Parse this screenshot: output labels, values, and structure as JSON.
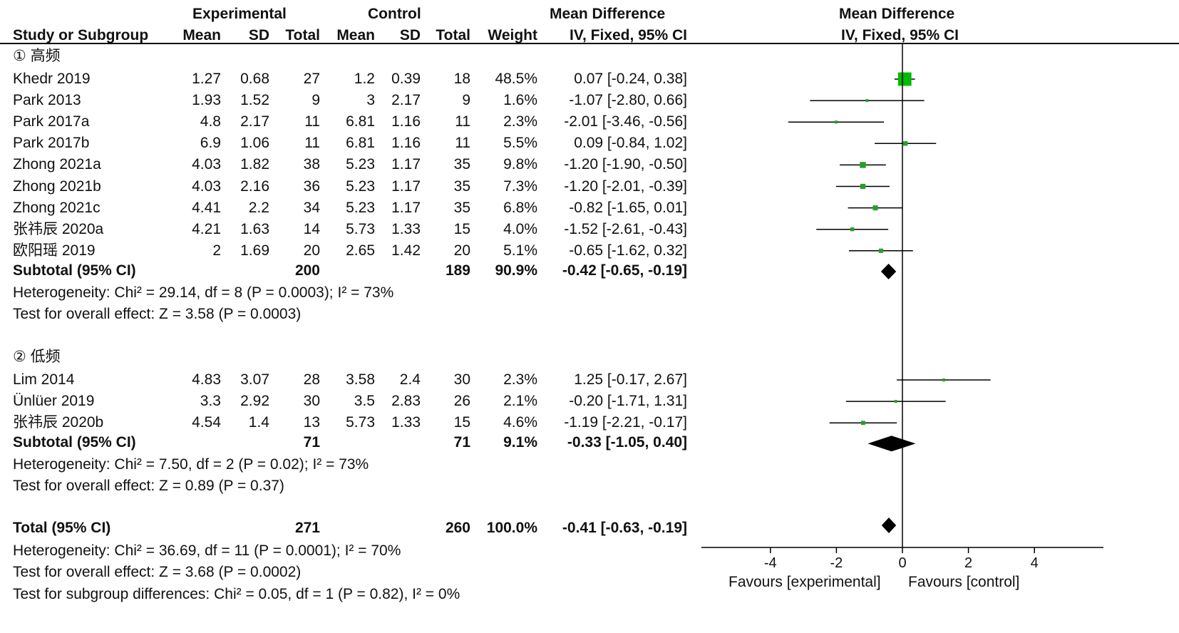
{
  "headers": {
    "group_experimental": "Experimental",
    "group_control": "Control",
    "group_md": "Mean Difference",
    "plot_title": "Mean Difference",
    "plot_subtitle": "IV, Fixed, 95% CI",
    "col_study": "Study or Subgroup",
    "col_mean": "Mean",
    "col_sd": "SD",
    "col_total": "Total",
    "col_weight": "Weight",
    "col_ci": "IV, Fixed, 95% CI"
  },
  "footer": {
    "favours_left": "Favours [experimental]",
    "favours_right": "Favours [control]",
    "subgroup_test": "Test for subgroup differences: Chi² = 0.05, df = 1 (P = 0.82), I² = 0%"
  },
  "chart_data": {
    "type": "forest",
    "axis": {
      "xlim": [
        -6,
        6
      ],
      "ticks": [
        -4,
        -2,
        0,
        2,
        4
      ]
    },
    "subgroups": [
      {
        "title": "① 高频",
        "studies": [
          {
            "name": "Khedr 2019",
            "e_mean": "1.27",
            "e_sd": "0.68",
            "e_total": "27",
            "c_mean": "1.2",
            "c_sd": "0.39",
            "c_total": "18",
            "weight": "48.5%",
            "ci": "0.07 [-0.24, 0.38]",
            "md": 0.07,
            "lo": -0.24,
            "hi": 0.38,
            "w": 48.5
          },
          {
            "name": "Park 2013",
            "e_mean": "1.93",
            "e_sd": "1.52",
            "e_total": "9",
            "c_mean": "3",
            "c_sd": "2.17",
            "c_total": "9",
            "weight": "1.6%",
            "ci": "-1.07 [-2.80, 0.66]",
            "md": -1.07,
            "lo": -2.8,
            "hi": 0.66,
            "w": 1.6
          },
          {
            "name": "Park 2017a",
            "e_mean": "4.8",
            "e_sd": "2.17",
            "e_total": "11",
            "c_mean": "6.81",
            "c_sd": "1.16",
            "c_total": "11",
            "weight": "2.3%",
            "ci": "-2.01 [-3.46, -0.56]",
            "md": -2.01,
            "lo": -3.46,
            "hi": -0.56,
            "w": 2.3
          },
          {
            "name": "Park 2017b",
            "e_mean": "6.9",
            "e_sd": "1.06",
            "e_total": "11",
            "c_mean": "6.81",
            "c_sd": "1.16",
            "c_total": "11",
            "weight": "5.5%",
            "ci": "0.09 [-0.84, 1.02]",
            "md": 0.09,
            "lo": -0.84,
            "hi": 1.02,
            "w": 5.5
          },
          {
            "name": "Zhong 2021a",
            "e_mean": "4.03",
            "e_sd": "1.82",
            "e_total": "38",
            "c_mean": "5.23",
            "c_sd": "1.17",
            "c_total": "35",
            "weight": "9.8%",
            "ci": "-1.20 [-1.90, -0.50]",
            "md": -1.2,
            "lo": -1.9,
            "hi": -0.5,
            "w": 9.8
          },
          {
            "name": "Zhong 2021b",
            "e_mean": "4.03",
            "e_sd": "2.16",
            "e_total": "36",
            "c_mean": "5.23",
            "c_sd": "1.17",
            "c_total": "35",
            "weight": "7.3%",
            "ci": "-1.20 [-2.01, -0.39]",
            "md": -1.2,
            "lo": -2.01,
            "hi": -0.39,
            "w": 7.3
          },
          {
            "name": "Zhong 2021c",
            "e_mean": "4.41",
            "e_sd": "2.2",
            "e_total": "34",
            "c_mean": "5.23",
            "c_sd": "1.17",
            "c_total": "35",
            "weight": "6.8%",
            "ci": "-0.82 [-1.65, 0.01]",
            "md": -0.82,
            "lo": -1.65,
            "hi": 0.01,
            "w": 6.8
          },
          {
            "name": "张祎辰 2020a",
            "e_mean": "4.21",
            "e_sd": "1.63",
            "e_total": "14",
            "c_mean": "5.73",
            "c_sd": "1.33",
            "c_total": "15",
            "weight": "4.0%",
            "ci": "-1.52 [-2.61, -0.43]",
            "md": -1.52,
            "lo": -2.61,
            "hi": -0.43,
            "w": 4.0
          },
          {
            "name": "欧阳瑶 2019",
            "e_mean": "2",
            "e_sd": "1.69",
            "e_total": "20",
            "c_mean": "2.65",
            "c_sd": "1.42",
            "c_total": "20",
            "weight": "5.1%",
            "ci": "-0.65 [-1.62, 0.32]",
            "md": -0.65,
            "lo": -1.62,
            "hi": 0.32,
            "w": 5.1
          }
        ],
        "subtotal": {
          "label": "Subtotal (95% CI)",
          "e_total": "200",
          "c_total": "189",
          "weight": "90.9%",
          "ci": "-0.42 [-0.65, -0.19]",
          "md": -0.42,
          "lo": -0.65,
          "hi": -0.19
        },
        "heterogeneity": "Heterogeneity: Chi² = 29.14, df = 8 (P = 0.0003); I² = 73%",
        "overall": "Test for overall effect: Z = 3.58 (P = 0.0003)"
      },
      {
        "title": "② 低频",
        "studies": [
          {
            "name": "Lim 2014",
            "e_mean": "4.83",
            "e_sd": "3.07",
            "e_total": "28",
            "c_mean": "3.58",
            "c_sd": "2.4",
            "c_total": "30",
            "weight": "2.3%",
            "ci": "1.25 [-0.17, 2.67]",
            "md": 1.25,
            "lo": -0.17,
            "hi": 2.67,
            "w": 2.3
          },
          {
            "name": "Ünlüer 2019",
            "e_mean": "3.3",
            "e_sd": "2.92",
            "e_total": "30",
            "c_mean": "3.5",
            "c_sd": "2.83",
            "c_total": "26",
            "weight": "2.1%",
            "ci": "-0.20 [-1.71, 1.31]",
            "md": -0.2,
            "lo": -1.71,
            "hi": 1.31,
            "w": 2.1
          },
          {
            "name": "张祎辰 2020b",
            "e_mean": "4.54",
            "e_sd": "1.4",
            "e_total": "13",
            "c_mean": "5.73",
            "c_sd": "1.33",
            "c_total": "15",
            "weight": "4.6%",
            "ci": "-1.19 [-2.21, -0.17]",
            "md": -1.19,
            "lo": -2.21,
            "hi": -0.17,
            "w": 4.6
          }
        ],
        "subtotal": {
          "label": "Subtotal (95% CI)",
          "e_total": "71",
          "c_total": "71",
          "weight": "9.1%",
          "ci": "-0.33 [-1.05, 0.40]",
          "md": -0.33,
          "lo": -1.05,
          "hi": 0.4
        },
        "heterogeneity": "Heterogeneity: Chi² = 7.50, df = 2 (P = 0.02); I² = 73%",
        "overall": "Test for overall effect: Z = 0.89 (P = 0.37)"
      }
    ],
    "total": {
      "label": "Total (95% CI)",
      "e_total": "271",
      "c_total": "260",
      "weight": "100.0%",
      "ci": "-0.41 [-0.63, -0.19]",
      "md": -0.41,
      "lo": -0.63,
      "hi": -0.19,
      "heterogeneity": "Heterogeneity: Chi² = 36.69, df = 11 (P = 0.0001); I² = 70%",
      "overall": "Test for overall effect: Z = 3.68 (P = 0.0002)"
    },
    "colors": {
      "study_marker": "#00bb00",
      "study_marker_small": "#2a9d2a",
      "diamond": "#000000",
      "lines": "#000000"
    }
  }
}
